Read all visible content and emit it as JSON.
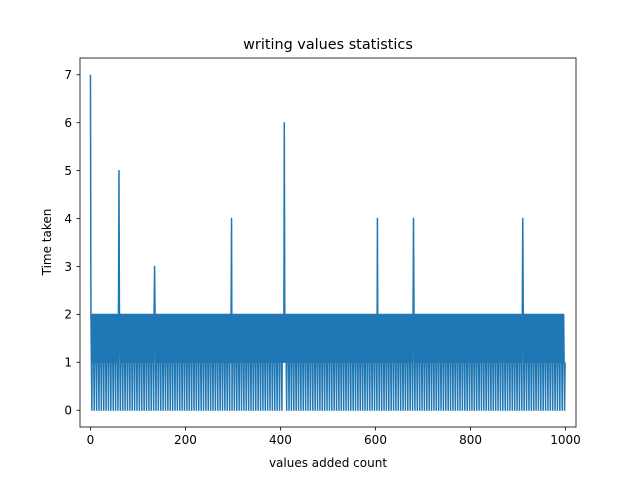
{
  "chart_data": {
    "type": "line",
    "title": "writing values statistics",
    "xlabel": "values added count",
    "ylabel": "Time taken",
    "xlim": [
      -22,
      1022
    ],
    "ylim": [
      -0.35,
      7.35
    ],
    "xticks": [
      0,
      200,
      400,
      600,
      800,
      1000
    ],
    "yticks": [
      0,
      1,
      2,
      3,
      4,
      5,
      6,
      7
    ],
    "grid": false,
    "series": [
      {
        "color": "#1f77b4",
        "count": 1000,
        "baseline_pattern": [
          1,
          2,
          1,
          1,
          2,
          0,
          1,
          2,
          2,
          1,
          0,
          1,
          2,
          1,
          1,
          0,
          2,
          1,
          2,
          1,
          1,
          0,
          2,
          1,
          1,
          2,
          0,
          1,
          2,
          1,
          1,
          1,
          2,
          0,
          1,
          2
        ],
        "spikes": [
          {
            "x": 0,
            "y": 7
          },
          {
            "x": 60,
            "y": 5
          },
          {
            "x": 135,
            "y": 3
          },
          {
            "x": 297,
            "y": 4
          },
          {
            "x": 408,
            "y": 6
          },
          {
            "x": 604,
            "y": 4
          },
          {
            "x": 680,
            "y": 4
          },
          {
            "x": 910,
            "y": 4
          }
        ]
      }
    ]
  }
}
